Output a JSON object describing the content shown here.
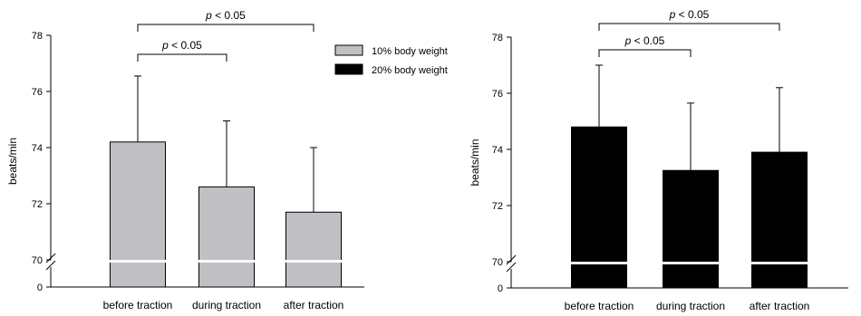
{
  "chart_data": [
    {
      "type": "bar",
      "categories": [
        "before traction",
        "during traction",
        "after traction"
      ],
      "series": [
        {
          "name": "10% body weight",
          "values": [
            74.2,
            72.6,
            71.7
          ],
          "errors": [
            2.35,
            2.35,
            2.3
          ],
          "color": "#c0c0c4"
        }
      ],
      "ylabel": "beats/min",
      "ylim": [
        70,
        78
      ],
      "axis_break": {
        "below": 70,
        "base_tick": "0"
      },
      "yticks": [
        "70",
        "72",
        "74",
        "76",
        "78"
      ],
      "grid": false,
      "legend": "top-right",
      "significance": [
        {
          "from": "before traction",
          "to": "during traction",
          "label": "p < 0.05"
        },
        {
          "from": "before traction",
          "to": "after traction",
          "label": "p < 0.05"
        }
      ]
    },
    {
      "type": "bar",
      "categories": [
        "before traction",
        "during traction",
        "after traction"
      ],
      "series": [
        {
          "name": "20% body weight",
          "values": [
            74.8,
            73.25,
            73.9
          ],
          "errors": [
            2.2,
            2.4,
            2.3
          ],
          "color": "#000000"
        }
      ],
      "ylabel": "beats/min",
      "ylim": [
        70,
        78
      ],
      "axis_break": {
        "below": 70,
        "base_tick": "0"
      },
      "yticks": [
        "70",
        "72",
        "74",
        "76",
        "78"
      ],
      "grid": false,
      "significance": [
        {
          "from": "before traction",
          "to": "during traction",
          "label": "p < 0.05"
        },
        {
          "from": "before traction",
          "to": "after traction",
          "label": "p < 0.05"
        }
      ]
    }
  ]
}
